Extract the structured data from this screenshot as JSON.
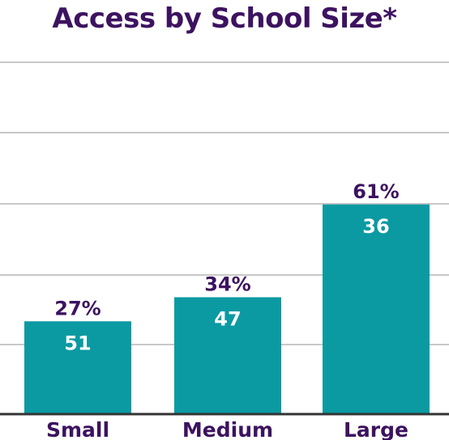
{
  "colors": {
    "title": "#3d1360",
    "bar": "#0b9aa2",
    "pct_label": "#3d1360",
    "count_label": "#ffffff",
    "category_label": "#3d1360",
    "gridline": "#c8c8c8",
    "baseline": "#333333"
  },
  "chart_data": {
    "type": "bar",
    "title": "Access by School Size*",
    "categories": [
      "Small",
      "Medium",
      "Large"
    ],
    "values": [
      27,
      34,
      61
    ],
    "value_labels": [
      "27%",
      "34%",
      "61%"
    ],
    "bar_labels": [
      "51",
      "47",
      "36"
    ],
    "ylim": [
      0,
      88
    ],
    "grid": true,
    "legend": "none"
  }
}
